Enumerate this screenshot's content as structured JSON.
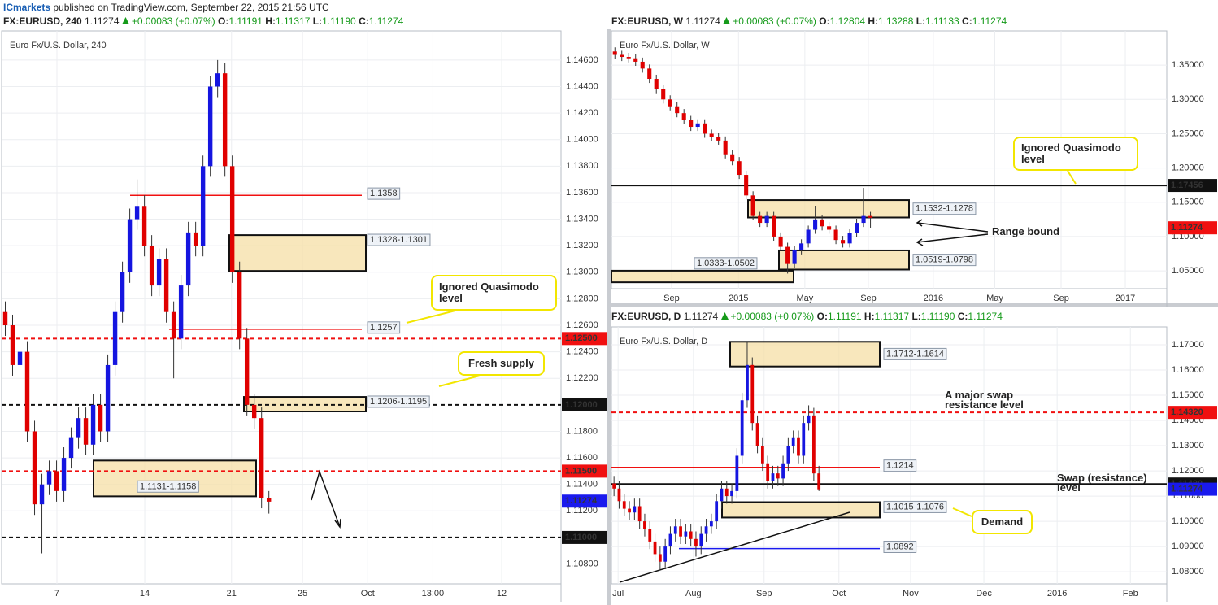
{
  "header": {
    "brand": "ICmarkets",
    "text": " published on TradingView.com, September 22, 2015 21:56 UTC"
  },
  "panels": [
    {
      "type": "candlestick",
      "symbol": "FX:EURUSD, 240",
      "last": "1.11274",
      "change": "+0.00083 (+0.07%)",
      "ohlc_text": [
        {
          "key": "O:",
          "value": "1.11191"
        },
        {
          "key": "H:",
          "value": "1.11317"
        },
        {
          "key": "L:",
          "value": "1.11190"
        },
        {
          "key": "C:",
          "value": "1.11274"
        }
      ],
      "title": "Euro Fx/U.S. Dollar, 240",
      "up_color": "#1515e0",
      "down_color": "#e00000",
      "grid": true,
      "ylim": [
        1.1065,
        1.1482
      ],
      "xlim": [
        -0.5,
        75.9
      ],
      "yticks": [
        {
          "value": 1.108,
          "label": "1.10800"
        },
        {
          "value": 1.112,
          "label": "1.11200"
        },
        {
          "value": 1.114,
          "label": "1.11400"
        },
        {
          "value": 1.116,
          "label": "1.11600"
        },
        {
          "value": 1.118,
          "label": "1.11800"
        },
        {
          "value": 1.122,
          "label": "1.12200"
        },
        {
          "value": 1.124,
          "label": "1.12400"
        },
        {
          "value": 1.126,
          "label": "1.12600"
        },
        {
          "value": 1.128,
          "label": "1.12800"
        },
        {
          "value": 1.13,
          "label": "1.13000"
        },
        {
          "value": 1.132,
          "label": "1.13200"
        },
        {
          "value": 1.134,
          "label": "1.13400"
        },
        {
          "value": 1.136,
          "label": "1.13600"
        },
        {
          "value": 1.138,
          "label": "1.13800"
        },
        {
          "value": 1.14,
          "label": "1.14000"
        },
        {
          "value": 1.142,
          "label": "1.14200"
        },
        {
          "value": 1.144,
          "label": "1.14400"
        },
        {
          "value": 1.146,
          "label": "1.14600"
        }
      ],
      "xticks": [
        {
          "value": 7.05,
          "label": "7"
        },
        {
          "value": 19.05,
          "label": "14"
        },
        {
          "value": 30.9,
          "label": "21"
        },
        {
          "value": 40.6,
          "label": "25"
        },
        {
          "value": 49.5,
          "label": "Oct"
        },
        {
          "value": 58.4,
          "label": "13:00"
        },
        {
          "value": 67.8,
          "label": "12"
        }
      ],
      "candles": [
        [
          1.127,
          1.1278,
          1.1252,
          1.126
        ],
        [
          1.126,
          1.1268,
          1.1222,
          1.123
        ],
        [
          1.123,
          1.1248,
          1.1222,
          1.124
        ],
        [
          1.124,
          1.1248,
          1.1172,
          1.118
        ],
        [
          1.118,
          1.1188,
          1.1117,
          1.1125
        ],
        [
          1.1125,
          1.1148,
          1.1088,
          1.114
        ],
        [
          1.114,
          1.1158,
          1.1132,
          1.115
        ],
        [
          1.115,
          1.1158,
          1.1127,
          1.1135
        ],
        [
          1.1135,
          1.1168,
          1.1127,
          1.116
        ],
        [
          1.116,
          1.1183,
          1.1152,
          1.1175
        ],
        [
          1.1175,
          1.1198,
          1.1167,
          1.119
        ],
        [
          1.119,
          1.1198,
          1.1162,
          1.117
        ],
        [
          1.117,
          1.1208,
          1.1162,
          1.12
        ],
        [
          1.12,
          1.1208,
          1.1172,
          1.118
        ],
        [
          1.118,
          1.1238,
          1.1172,
          1.123
        ],
        [
          1.123,
          1.1278,
          1.1222,
          1.127
        ],
        [
          1.127,
          1.1308,
          1.1262,
          1.13
        ],
        [
          1.13,
          1.1348,
          1.1292,
          1.134
        ],
        [
          1.134,
          1.137,
          1.1332,
          1.135
        ],
        [
          1.135,
          1.1358,
          1.1312,
          1.132
        ],
        [
          1.132,
          1.1328,
          1.1282,
          1.129
        ],
        [
          1.129,
          1.1318,
          1.1282,
          1.131
        ],
        [
          1.131,
          1.1318,
          1.1262,
          1.127
        ],
        [
          1.127,
          1.1278,
          1.122,
          1.125
        ],
        [
          1.125,
          1.1298,
          1.1242,
          1.129
        ],
        [
          1.129,
          1.1338,
          1.1282,
          1.133
        ],
        [
          1.133,
          1.1338,
          1.1312,
          1.132
        ],
        [
          1.132,
          1.1388,
          1.1312,
          1.138
        ],
        [
          1.138,
          1.1448,
          1.1372,
          1.144
        ],
        [
          1.144,
          1.146,
          1.1432,
          1.145
        ],
        [
          1.145,
          1.1458,
          1.1372,
          1.138
        ],
        [
          1.138,
          1.1388,
          1.1292,
          1.13
        ],
        [
          1.13,
          1.1308,
          1.1242,
          1.125
        ],
        [
          1.125,
          1.1258,
          1.1192,
          1.12
        ],
        [
          1.12,
          1.1208,
          1.1182,
          1.119
        ],
        [
          1.119,
          1.1198,
          1.1122,
          1.113
        ],
        [
          1.113,
          1.1135,
          1.1118,
          1.1127
        ]
      ],
      "axis_markers": [
        {
          "value": 1.125,
          "label": "1.12500",
          "color": "#f01010",
          "line": "dashed"
        },
        {
          "value": 1.12,
          "label": "1.12000",
          "color": "#111111",
          "line": "dashed"
        },
        {
          "value": 1.115,
          "label": "1.11500",
          "color": "#f01010",
          "line": "dashed"
        },
        {
          "value": 1.11274,
          "label": "1.11274",
          "color": "#1a1aee"
        },
        {
          "value": 1.11,
          "label": "1.11000",
          "color": "#111111",
          "line": "dashed"
        }
      ],
      "levels": [
        {
          "value": 1.1358,
          "color": "#f01010"
        },
        {
          "value": 1.1257,
          "color": "#f01010"
        }
      ],
      "zones": [
        {
          "label": "1.1328-1.1301",
          "high": 1.1328,
          "low": 1.1301
        },
        {
          "label": "1.1206-1.1195",
          "high": 1.1206,
          "low": 1.1195
        },
        {
          "label": "1.1131-1.1158",
          "high": 1.1158,
          "low": 1.1131
        }
      ],
      "callouts": [
        "Ignored Quasimodo level",
        "Fresh supply"
      ],
      "notes": []
    },
    {
      "type": "candlestick",
      "symbol": "FX:EURUSD, W",
      "last": "1.11274",
      "change": "+0.00083 (+0.07%)",
      "ohlc_text": [
        {
          "key": "O:",
          "value": "1.12804"
        },
        {
          "key": "H:",
          "value": "1.13288"
        },
        {
          "key": "L:",
          "value": "1.11133"
        },
        {
          "key": "C:",
          "value": "1.11274"
        }
      ],
      "title": "Euro Fx/U.S. Dollar, W",
      "up_color": "#1515e0",
      "down_color": "#e00000",
      "grid": true,
      "ylim": [
        1.024,
        1.4
      ],
      "xlim": [
        -0.5,
        79.9
      ],
      "yticks": [
        {
          "value": 1.05,
          "label": "1.05000"
        },
        {
          "value": 1.1,
          "label": "1.10000"
        },
        {
          "value": 1.15,
          "label": "1.15000"
        },
        {
          "value": 1.2,
          "label": "1.20000"
        },
        {
          "value": 1.25,
          "label": "1.25000"
        },
        {
          "value": 1.3,
          "label": "1.30000"
        },
        {
          "value": 1.35,
          "label": "1.35000"
        }
      ],
      "xticks": [
        {
          "value": 8.2,
          "label": "Sep"
        },
        {
          "value": 17.9,
          "label": "2015"
        },
        {
          "value": 27.5,
          "label": "May"
        },
        {
          "value": 36.7,
          "label": "Sep"
        },
        {
          "value": 46.1,
          "label": "2016"
        },
        {
          "value": 55.0,
          "label": "May"
        },
        {
          "value": 64.6,
          "label": "Sep"
        },
        {
          "value": 73.9,
          "label": "2017"
        }
      ],
      "candles": [
        [
          1.37,
          1.376,
          1.359,
          1.365
        ],
        [
          1.365,
          1.371,
          1.356,
          1.362
        ],
        [
          1.362,
          1.368,
          1.354,
          1.36
        ],
        [
          1.36,
          1.366,
          1.349,
          1.355
        ],
        [
          1.355,
          1.361,
          1.339,
          1.345
        ],
        [
          1.345,
          1.351,
          1.324,
          1.33
        ],
        [
          1.33,
          1.336,
          1.309,
          1.315
        ],
        [
          1.315,
          1.321,
          1.294,
          1.3
        ],
        [
          1.3,
          1.306,
          1.284,
          1.29
        ],
        [
          1.29,
          1.296,
          1.274,
          1.28
        ],
        [
          1.28,
          1.286,
          1.264,
          1.27
        ],
        [
          1.27,
          1.276,
          1.254,
          1.26
        ],
        [
          1.26,
          1.271,
          1.254,
          1.265
        ],
        [
          1.265,
          1.271,
          1.244,
          1.25
        ],
        [
          1.25,
          1.256,
          1.239,
          1.245
        ],
        [
          1.245,
          1.251,
          1.234,
          1.24
        ],
        [
          1.24,
          1.246,
          1.214,
          1.22
        ],
        [
          1.22,
          1.226,
          1.204,
          1.21
        ],
        [
          1.21,
          1.216,
          1.184,
          1.19
        ],
        [
          1.19,
          1.196,
          1.154,
          1.16
        ],
        [
          1.16,
          1.166,
          1.124,
          1.13
        ],
        [
          1.13,
          1.136,
          1.114,
          1.12
        ],
        [
          1.12,
          1.136,
          1.114,
          1.13
        ],
        [
          1.13,
          1.136,
          1.094,
          1.1
        ],
        [
          1.1,
          1.106,
          1.079,
          1.085
        ],
        [
          1.085,
          1.091,
          1.046,
          1.06
        ],
        [
          1.06,
          1.086,
          1.054,
          1.08
        ],
        [
          1.08,
          1.096,
          1.074,
          1.09
        ],
        [
          1.09,
          1.116,
          1.084,
          1.11
        ],
        [
          1.11,
          1.145,
          1.104,
          1.125
        ],
        [
          1.125,
          1.131,
          1.109,
          1.115
        ],
        [
          1.115,
          1.121,
          1.104,
          1.11
        ],
        [
          1.11,
          1.116,
          1.089,
          1.095
        ],
        [
          1.095,
          1.101,
          1.084,
          1.09
        ],
        [
          1.09,
          1.111,
          1.084,
          1.105
        ],
        [
          1.105,
          1.126,
          1.099,
          1.12
        ],
        [
          1.12,
          1.171,
          1.114,
          1.13
        ],
        [
          1.13,
          1.136,
          1.113,
          1.1274
        ]
      ],
      "axis_markers": [
        {
          "value": 1.17456,
          "label": "1.17456",
          "color": "#111111",
          "line": "solid"
        },
        {
          "value": 1.11274,
          "label": "1.11274",
          "color": "#f01010"
        }
      ],
      "levels": [],
      "zones": [
        {
          "label": "1.1532-1.1278",
          "high": 1.1532,
          "low": 1.1278
        },
        {
          "label": "1.0519-1.0798",
          "high": 1.0798,
          "low": 1.0519
        },
        {
          "label": "1.0333-1.0502",
          "high": 1.0502,
          "low": 1.0333
        }
      ],
      "callouts": [
        "Ignored Quasimodo level"
      ],
      "notes": [
        "Range bound"
      ]
    },
    {
      "type": "candlestick",
      "symbol": "FX:EURUSD, D",
      "last": "1.11274",
      "change": "+0.00083 (+0.07%)",
      "ohlc_text": [
        {
          "key": "O:",
          "value": "1.11191"
        },
        {
          "key": "H:",
          "value": "1.11317"
        },
        {
          "key": "L:",
          "value": "1.11190"
        },
        {
          "key": "C:",
          "value": "1.11274"
        }
      ],
      "title": "Euro Fx/U.S. Dollar, D",
      "up_color": "#1515e0",
      "down_color": "#e00000",
      "grid": true,
      "ylim": [
        1.0752,
        1.1771
      ],
      "xlim": [
        -0.5,
        107.9
      ],
      "yticks": [
        {
          "value": 1.08,
          "label": "1.08000"
        },
        {
          "value": 1.09,
          "label": "1.09000"
        },
        {
          "value": 1.1,
          "label": "1.10000"
        },
        {
          "value": 1.11,
          "label": "1.11000"
        },
        {
          "value": 1.12,
          "label": "1.12000"
        },
        {
          "value": 1.13,
          "label": "1.13000"
        },
        {
          "value": 1.14,
          "label": "1.14000"
        },
        {
          "value": 1.15,
          "label": "1.15000"
        },
        {
          "value": 1.16,
          "label": "1.16000"
        },
        {
          "value": 1.17,
          "label": "1.17000"
        }
      ],
      "xticks": [
        {
          "value": 0.8,
          "label": "Jul"
        },
        {
          "value": 15.5,
          "label": "Aug"
        },
        {
          "value": 29.3,
          "label": "Sep"
        },
        {
          "value": 43.9,
          "label": "Oct"
        },
        {
          "value": 57.9,
          "label": "Nov"
        },
        {
          "value": 72.2,
          "label": "Dec"
        },
        {
          "value": 86.5,
          "label": "2016"
        },
        {
          "value": 100.8,
          "label": "Feb"
        }
      ],
      "candles": [
        [
          1.115,
          1.118,
          1.11,
          1.113
        ],
        [
          1.113,
          1.116,
          1.105,
          1.108
        ],
        [
          1.108,
          1.111,
          1.102,
          1.105
        ],
        [
          1.105,
          1.108,
          1.1005,
          1.1035
        ],
        [
          1.1035,
          1.109,
          1.1005,
          1.106
        ],
        [
          1.106,
          1.109,
          1.097,
          1.1
        ],
        [
          1.1,
          1.103,
          1.094,
          1.097
        ],
        [
          1.097,
          1.1,
          1.089,
          1.092
        ],
        [
          1.092,
          1.095,
          1.084,
          1.087
        ],
        [
          1.087,
          1.09,
          1.081,
          1.084
        ],
        [
          1.084,
          1.093,
          1.081,
          1.09
        ],
        [
          1.09,
          1.098,
          1.087,
          1.095
        ],
        [
          1.095,
          1.101,
          1.092,
          1.098
        ],
        [
          1.098,
          1.101,
          1.091,
          1.094
        ],
        [
          1.094,
          1.099,
          1.091,
          1.096
        ],
        [
          1.096,
          1.099,
          1.09,
          1.093
        ],
        [
          1.093,
          1.096,
          1.086,
          1.09
        ],
        [
          1.09,
          1.098,
          1.087,
          1.095
        ],
        [
          1.095,
          1.101,
          1.092,
          1.098
        ],
        [
          1.098,
          1.103,
          1.095,
          1.1
        ],
        [
          1.1,
          1.111,
          1.097,
          1.108
        ],
        [
          1.108,
          1.116,
          1.105,
          1.113
        ],
        [
          1.113,
          1.116,
          1.107,
          1.11
        ],
        [
          1.11,
          1.115,
          1.107,
          1.112
        ],
        [
          1.112,
          1.129,
          1.109,
          1.126
        ],
        [
          1.126,
          1.151,
          1.123,
          1.148
        ],
        [
          1.148,
          1.171,
          1.145,
          1.162
        ],
        [
          1.162,
          1.165,
          1.136,
          1.139
        ],
        [
          1.139,
          1.142,
          1.127,
          1.13
        ],
        [
          1.13,
          1.133,
          1.12,
          1.123
        ],
        [
          1.123,
          1.126,
          1.113,
          1.116
        ],
        [
          1.116,
          1.122,
          1.113,
          1.119
        ],
        [
          1.119,
          1.122,
          1.114,
          1.117
        ],
        [
          1.117,
          1.126,
          1.114,
          1.123
        ],
        [
          1.123,
          1.133,
          1.12,
          1.13
        ],
        [
          1.13,
          1.136,
          1.127,
          1.133
        ],
        [
          1.133,
          1.136,
          1.123,
          1.126
        ],
        [
          1.126,
          1.142,
          1.123,
          1.139
        ],
        [
          1.139,
          1.146,
          1.136,
          1.142
        ],
        [
          1.142,
          1.145,
          1.116,
          1.119
        ],
        [
          1.119,
          1.122,
          1.112,
          1.1127
        ]
      ],
      "axis_markers": [
        {
          "value": 1.1432,
          "label": "1.14320",
          "color": "#f01010",
          "line": "dashed"
        },
        {
          "value": 1.1148,
          "label": "1.11480",
          "color": "#111111",
          "line": "solid"
        },
        {
          "value": 1.11274,
          "label": "1.11274",
          "color": "#1a1aee"
        }
      ],
      "levels": [
        {
          "value": 1.1214,
          "color": "#f01010"
        },
        {
          "value": 1.0892,
          "color": "#1a1aee"
        }
      ],
      "zones": [
        {
          "label": "1.1712-1.1614",
          "high": 1.1712,
          "low": 1.1614
        },
        {
          "label": "1.1015-1.1076",
          "high": 1.1076,
          "low": 1.1015
        }
      ],
      "callouts": [
        "Demand"
      ],
      "notes": [
        "A major swap resistance level",
        "Swap (resistance) level"
      ]
    }
  ]
}
